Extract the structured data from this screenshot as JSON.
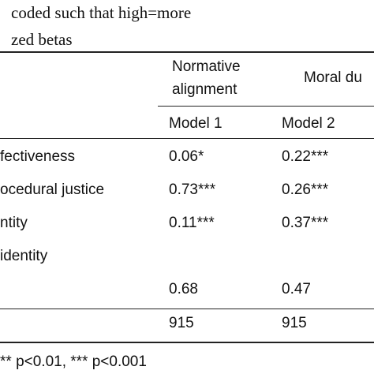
{
  "header": {
    "note_line1": "coded such that high=more",
    "note_line2": "zed betas"
  },
  "columns": {
    "normative_line1": "Normative",
    "normative_line2": "alignment",
    "moral_duty": "Moral du",
    "model1": "Model 1",
    "model2": "Model 2"
  },
  "rows": [
    {
      "label": "fectiveness",
      "m1": "0.06*",
      "m2": "0.22***"
    },
    {
      "label": "ocedural justice",
      "m1": "0.73***",
      "m2": "0.26***"
    },
    {
      "label": "ntity",
      "m1": "0.11***",
      "m2": "0.37***"
    },
    {
      "label": "identity",
      "m1": "",
      "m2": ""
    },
    {
      "label": "",
      "m1": "0.68",
      "m2": "0.47"
    },
    {
      "label": "",
      "m1": "915",
      "m2": "915"
    }
  ],
  "footer": {
    "note": "** p<0.01, *** p<0.001"
  }
}
